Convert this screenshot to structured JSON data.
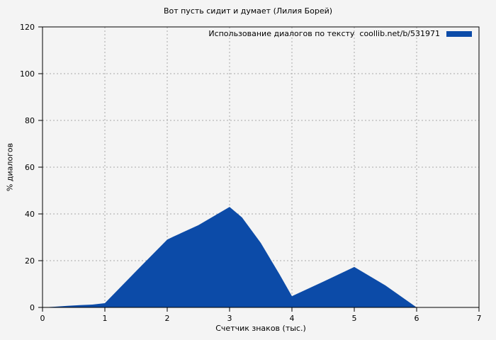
{
  "chart_data": {
    "type": "area",
    "title": "Вот пусть сидит и думает (Лилия Борей)",
    "xlabel": "Счетчик знаков (тыс.)",
    "ylabel": "% диалогов",
    "xlim": [
      0,
      7
    ],
    "ylim": [
      0,
      120
    ],
    "x_ticks": [
      0,
      1,
      2,
      3,
      4,
      5,
      6,
      7
    ],
    "y_ticks": [
      0,
      20,
      40,
      60,
      80,
      100,
      120
    ],
    "grid": true,
    "legend": {
      "label": "Использование диалогов по тексту  coollib.net/b/531971",
      "position": "top-right"
    },
    "colors": {
      "series": "#0c4ba8",
      "grid": "#a9a9a9",
      "frame": "#000000",
      "background": "#f4f4f4",
      "text": "#000000"
    },
    "series": [
      {
        "name": "Использование диалогов по тексту coollib.net/b/531971",
        "color": "#0c4ba8",
        "x": [
          0,
          0.2,
          0.4,
          0.6,
          0.8,
          1.0,
          1.5,
          2.0,
          2.1,
          2.5,
          3.0,
          3.2,
          3.5,
          3.8,
          4.0,
          4.5,
          5.0,
          5.5,
          6.0
        ],
        "y": [
          0,
          0.3,
          0.7,
          1.0,
          1.2,
          1.8,
          15.5,
          29,
          30.3,
          35.2,
          43,
          38.5,
          27.6,
          14.2,
          4.8,
          11,
          17.3,
          9.4,
          0
        ]
      }
    ]
  }
}
